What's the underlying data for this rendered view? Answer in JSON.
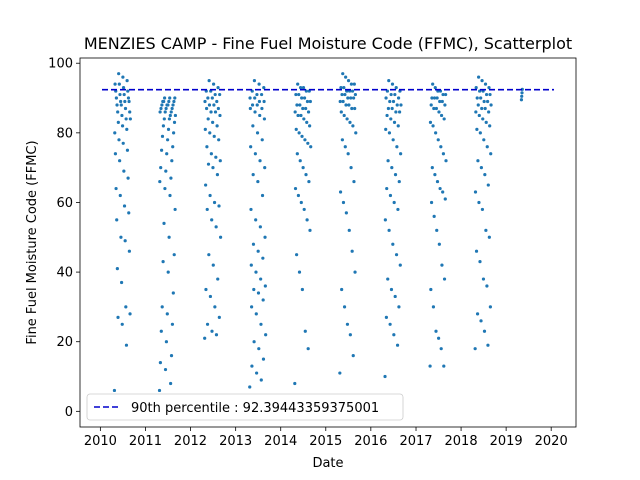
{
  "chart_data": {
    "type": "scatter",
    "title": "MENZIES CAMP - Fine Fuel Moisture Code (FFMC), Scatterplot",
    "xlabel": "Date",
    "ylabel": "Fine Fuel Moisture Code (FFMC)",
    "xlim": [
      "2009-07-20",
      "2020-07-20"
    ],
    "ylim": [
      -4.5,
      101.5
    ],
    "x_ticks": [
      "2010",
      "2011",
      "2012",
      "2013",
      "2014",
      "2015",
      "2016",
      "2017",
      "2018",
      "2019",
      "2020"
    ],
    "y_ticks": [
      0,
      20,
      40,
      60,
      80,
      100
    ],
    "grid": false,
    "legend_position": "lower-left",
    "reference_line": {
      "label": "90th percentile : 92.39443359375001",
      "value": 92.39443359375001,
      "style": "dashed",
      "color": "#0000cc"
    },
    "series_color": "#1f77b4",
    "seasons": [
      {
        "year": 2010,
        "start": "2010-04-25",
        "end": "2010-09-01",
        "values": [
          6,
          19,
          25,
          27,
          28,
          30,
          37,
          41,
          46,
          49,
          50,
          55,
          57,
          59,
          62,
          64,
          67,
          69,
          72,
          74,
          75,
          77,
          78,
          80,
          81,
          82,
          83,
          84,
          84,
          85,
          86,
          86,
          87,
          88,
          88,
          89,
          89,
          89,
          90,
          90,
          91,
          91,
          92,
          92,
          93,
          94,
          94,
          95,
          96,
          97
        ]
      },
      {
        "year": 2011,
        "start": "2011-04-25",
        "end": "2011-09-01",
        "values": [
          6,
          8,
          12,
          14,
          16,
          20,
          23,
          25,
          28,
          30,
          34,
          40,
          43,
          45,
          50,
          54,
          58,
          62,
          64,
          66,
          67,
          69,
          70,
          72,
          74,
          75,
          76,
          78,
          79,
          80,
          81,
          82,
          83,
          84,
          84,
          85,
          85,
          86,
          86,
          86,
          87,
          87,
          87,
          88,
          88,
          88,
          88,
          89,
          89,
          89,
          89,
          90,
          90,
          90
        ]
      },
      {
        "year": 2012,
        "start": "2012-04-25",
        "end": "2012-09-01",
        "values": [
          21,
          22,
          23,
          25,
          27,
          30,
          33,
          35,
          38,
          42,
          45,
          50,
          53,
          55,
          58,
          59,
          60,
          62,
          65,
          68,
          70,
          71,
          72,
          73,
          74,
          76,
          78,
          79,
          80,
          81,
          82,
          83,
          84,
          85,
          86,
          86,
          87,
          87,
          88,
          88,
          89,
          89,
          90,
          90,
          91,
          91,
          92,
          92,
          93,
          94,
          95
        ]
      },
      {
        "year": 2013,
        "start": "2013-04-25",
        "end": "2013-09-01",
        "values": [
          7,
          9,
          11,
          13,
          15,
          18,
          20,
          22,
          25,
          28,
          30,
          32,
          34,
          35,
          36,
          38,
          40,
          42,
          44,
          46,
          48,
          50,
          53,
          55,
          58,
          62,
          66,
          68,
          70,
          72,
          74,
          76,
          78,
          80,
          82,
          84,
          85,
          86,
          87,
          87,
          88,
          88,
          89,
          89,
          90,
          90,
          91,
          91,
          92,
          93,
          94,
          95
        ]
      },
      {
        "year": 2014,
        "start": "2014-04-25",
        "end": "2014-09-01",
        "values": [
          8,
          18,
          23,
          35,
          40,
          45,
          52,
          55,
          58,
          60,
          62,
          64,
          66,
          68,
          70,
          72,
          74,
          76,
          77,
          78,
          79,
          80,
          81,
          82,
          83,
          84,
          85,
          85,
          86,
          86,
          87,
          87,
          88,
          88,
          89,
          89,
          90,
          90,
          91,
          91,
          92,
          92,
          93,
          93,
          94
        ]
      },
      {
        "year": 2015,
        "start": "2015-04-25",
        "end": "2015-09-01",
        "values": [
          11,
          16,
          22,
          25,
          30,
          35,
          40,
          46,
          52,
          57,
          60,
          63,
          66,
          70,
          74,
          76,
          78,
          80,
          82,
          83,
          84,
          85,
          86,
          87,
          87,
          88,
          88,
          89,
          89,
          90,
          90,
          90,
          91,
          91,
          91,
          92,
          92,
          92,
          93,
          93,
          94,
          94,
          95,
          96,
          97
        ]
      },
      {
        "year": 2016,
        "start": "2016-04-25",
        "end": "2016-09-01",
        "values": [
          10,
          19,
          22,
          25,
          27,
          30,
          33,
          35,
          38,
          42,
          45,
          48,
          52,
          55,
          58,
          60,
          62,
          64,
          66,
          68,
          70,
          72,
          74,
          76,
          78,
          80,
          81,
          82,
          83,
          84,
          85,
          86,
          86,
          87,
          87,
          88,
          88,
          89,
          89,
          90,
          90,
          91,
          91,
          92,
          92,
          93,
          94,
          95
        ]
      },
      {
        "year": 2017,
        "start": "2017-04-25",
        "end": "2017-09-01",
        "values": [
          13,
          13,
          18,
          21,
          23,
          30,
          35,
          38,
          42,
          48,
          52,
          56,
          60,
          61,
          63,
          64,
          66,
          68,
          70,
          72,
          74,
          76,
          78,
          80,
          82,
          83,
          84,
          85,
          86,
          87,
          87,
          88,
          88,
          89,
          89,
          90,
          90,
          90,
          91,
          91,
          92,
          92,
          93,
          94
        ]
      },
      {
        "year": 2018,
        "start": "2018-04-25",
        "end": "2018-09-01",
        "values": [
          18,
          19,
          23,
          26,
          28,
          30,
          36,
          38,
          43,
          46,
          50,
          52,
          58,
          60,
          63,
          65,
          68,
          70,
          72,
          74,
          76,
          78,
          80,
          81,
          82,
          83,
          84,
          85,
          86,
          86,
          87,
          87,
          88,
          88,
          89,
          89,
          90,
          90,
          91,
          91,
          92,
          92,
          93,
          93,
          94,
          95,
          96
        ]
      },
      {
        "year": 2019,
        "start": "2019-05-05",
        "end": "2019-05-12",
        "values": [
          89.5,
          90.5,
          91.5,
          92.5
        ]
      }
    ]
  }
}
